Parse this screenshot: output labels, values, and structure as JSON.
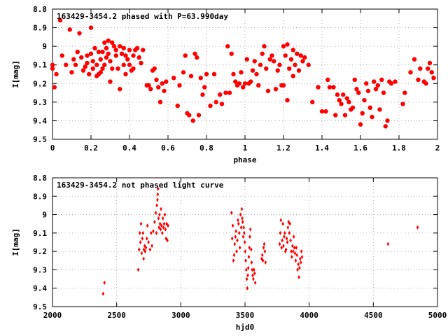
{
  "chart_data": [
    {
      "type": "scatter",
      "title": "163429-3454.2 phased with P=63.990day",
      "xlabel": "phase",
      "ylabel": "I[mag]",
      "xlim": [
        0,
        2
      ],
      "ylim": [
        8.8,
        9.5
      ],
      "y_inverted": true,
      "grid": true,
      "marker": "filled circle",
      "color": "#ff0000",
      "x_ticks": [
        "0",
        "0.2",
        "0.4",
        "0.6",
        "0.8",
        "1",
        "1.2",
        "1.4",
        "1.6",
        "1.8",
        "2"
      ],
      "y_ticks": [
        "8.8",
        "8.9",
        "9",
        "9.1",
        "9.2",
        "9.3",
        "9.4",
        "9.5"
      ],
      "points": [
        [
          0.0,
          9.1
        ],
        [
          0.0,
          9.12
        ],
        [
          0.01,
          9.22
        ],
        [
          0.02,
          9.15
        ],
        [
          0.04,
          8.86
        ],
        [
          0.05,
          9.05
        ],
        [
          0.07,
          9.1
        ],
        [
          0.09,
          8.91
        ],
        [
          0.1,
          9.14
        ],
        [
          0.11,
          9.07
        ],
        [
          0.12,
          9.1
        ],
        [
          0.13,
          9.03
        ],
        [
          0.14,
          8.93
        ],
        [
          0.15,
          9.06
        ],
        [
          0.16,
          9.13
        ],
        [
          0.17,
          9.11
        ],
        [
          0.18,
          9.05
        ],
        [
          0.18,
          9.09
        ],
        [
          0.19,
          9.15
        ],
        [
          0.2,
          8.9
        ],
        [
          0.2,
          9.04
        ],
        [
          0.21,
          9.08
        ],
        [
          0.21,
          9.12
        ],
        [
          0.22,
          9.01
        ],
        [
          0.23,
          9.16
        ],
        [
          0.23,
          9.1
        ],
        [
          0.24,
          9.03
        ],
        [
          0.24,
          9.15
        ],
        [
          0.25,
          9.14
        ],
        [
          0.25,
          9.07
        ],
        [
          0.26,
          9.03
        ],
        [
          0.26,
          9.12
        ],
        [
          0.27,
          8.98
        ],
        [
          0.27,
          9.1
        ],
        [
          0.28,
          9.06
        ],
        [
          0.28,
          9.01
        ],
        [
          0.29,
          8.97
        ],
        [
          0.29,
          9.04
        ],
        [
          0.3,
          9.08
        ],
        [
          0.3,
          9.19
        ],
        [
          0.31,
          8.98
        ],
        [
          0.31,
          9.12
        ],
        [
          0.32,
          9.0
        ],
        [
          0.33,
          9.02
        ],
        [
          0.33,
          9.05
        ],
        [
          0.34,
          9.12
        ],
        [
          0.35,
          9.0
        ],
        [
          0.35,
          9.23
        ],
        [
          0.36,
          9.04
        ],
        [
          0.37,
          9.01
        ],
        [
          0.37,
          9.1
        ],
        [
          0.38,
          9.15
        ],
        [
          0.38,
          9.05
        ],
        [
          0.39,
          9.07
        ],
        [
          0.4,
          9.1
        ],
        [
          0.4,
          9.02
        ],
        [
          0.41,
          9.13
        ],
        [
          0.42,
          9.05
        ],
        [
          0.42,
          9.12
        ],
        [
          0.43,
          9.02
        ],
        [
          0.44,
          9.01
        ],
        [
          0.45,
          9.06
        ],
        [
          0.46,
          9.09
        ],
        [
          0.47,
          9.02
        ],
        [
          0.49,
          9.21
        ],
        [
          0.5,
          9.21
        ],
        [
          0.51,
          9.23
        ],
        [
          0.52,
          9.13
        ],
        [
          0.53,
          9.12
        ],
        [
          0.54,
          9.18
        ],
        [
          0.55,
          9.22
        ],
        [
          0.56,
          9.3
        ],
        [
          0.57,
          9.2
        ],
        [
          0.58,
          9.24
        ],
        [
          0.59,
          9.19
        ],
        [
          0.63,
          9.17
        ],
        [
          0.65,
          9.32
        ],
        [
          0.66,
          9.21
        ],
        [
          0.68,
          9.14
        ],
        [
          0.69,
          9.05
        ],
        [
          0.7,
          9.36
        ],
        [
          0.71,
          9.37
        ],
        [
          0.72,
          9.16
        ],
        [
          0.73,
          9.4
        ],
        [
          0.74,
          9.04
        ],
        [
          0.75,
          9.06
        ],
        [
          0.76,
          9.37
        ],
        [
          0.77,
          9.17
        ],
        [
          0.78,
          9.26
        ],
        [
          0.79,
          9.22
        ],
        [
          0.8,
          9.15
        ],
        [
          0.82,
          9.32
        ],
        [
          0.84,
          9.15
        ],
        [
          0.85,
          9.3
        ],
        [
          0.87,
          9.26
        ],
        [
          0.88,
          9.31
        ],
        [
          0.9,
          9.25
        ],
        [
          0.91,
          9.0
        ],
        [
          0.92,
          9.25
        ],
        [
          0.93,
          9.04
        ],
        [
          0.94,
          9.15
        ],
        [
          0.95,
          9.19
        ],
        [
          0.96,
          9.21
        ],
        [
          0.97,
          9.2
        ],
        [
          0.98,
          9.14
        ],
        [
          0.99,
          9.22
        ],
        [
          1.0,
          9.2
        ],
        [
          1.01,
          9.07
        ],
        [
          1.02,
          9.2
        ],
        [
          1.03,
          9.19
        ],
        [
          1.04,
          9.13
        ],
        [
          1.05,
          9.08
        ],
        [
          1.06,
          9.15
        ],
        [
          1.07,
          9.21
        ],
        [
          1.08,
          9.1
        ],
        [
          1.09,
          9.04
        ],
        [
          1.1,
          9.0
        ],
        [
          1.11,
          9.12
        ],
        [
          1.12,
          9.24
        ],
        [
          1.13,
          9.07
        ],
        [
          1.14,
          9.05
        ],
        [
          1.15,
          9.08
        ],
        [
          1.16,
          9.23
        ],
        [
          1.17,
          9.13
        ],
        [
          1.18,
          9.1
        ],
        [
          1.19,
          9.21
        ],
        [
          1.2,
          9.0
        ],
        [
          1.2,
          9.21
        ],
        [
          1.21,
          9.05
        ],
        [
          1.22,
          8.99
        ],
        [
          1.22,
          9.29
        ],
        [
          1.23,
          9.12
        ],
        [
          1.24,
          9.07
        ],
        [
          1.25,
          9.02
        ],
        [
          1.25,
          9.16
        ],
        [
          1.26,
          9.1
        ],
        [
          1.27,
          9.04
        ],
        [
          1.28,
          9.13
        ],
        [
          1.29,
          9.05
        ],
        [
          1.3,
          9.08
        ],
        [
          1.31,
          9.06
        ],
        [
          1.33,
          9.1
        ],
        [
          1.35,
          9.3
        ],
        [
          1.38,
          9.22
        ],
        [
          1.4,
          9.35
        ],
        [
          1.42,
          9.35
        ],
        [
          1.43,
          9.18
        ],
        [
          1.44,
          9.22
        ],
        [
          1.46,
          9.22
        ],
        [
          1.47,
          9.37
        ],
        [
          1.48,
          9.26
        ],
        [
          1.49,
          9.29
        ],
        [
          1.5,
          9.31
        ],
        [
          1.51,
          9.26
        ],
        [
          1.52,
          9.37
        ],
        [
          1.53,
          9.28
        ],
        [
          1.54,
          9.3
        ],
        [
          1.55,
          9.34
        ],
        [
          1.56,
          9.33
        ],
        [
          1.57,
          9.18
        ],
        [
          1.58,
          9.23
        ],
        [
          1.59,
          9.25
        ],
        [
          1.6,
          9.42
        ],
        [
          1.61,
          9.36
        ],
        [
          1.62,
          9.29
        ],
        [
          1.63,
          9.2
        ],
        [
          1.64,
          9.24
        ],
        [
          1.65,
          9.33
        ],
        [
          1.66,
          9.38
        ],
        [
          1.67,
          9.19
        ],
        [
          1.68,
          9.23
        ],
        [
          1.69,
          9.21
        ],
        [
          1.7,
          9.34
        ],
        [
          1.71,
          9.18
        ],
        [
          1.72,
          9.25
        ],
        [
          1.73,
          9.43
        ],
        [
          1.74,
          9.4
        ],
        [
          1.75,
          9.19
        ],
        [
          1.76,
          9.2
        ],
        [
          1.78,
          9.19
        ],
        [
          1.82,
          9.31
        ],
        [
          1.83,
          9.25
        ],
        [
          1.86,
          9.14
        ],
        [
          1.88,
          9.07
        ],
        [
          1.9,
          9.18
        ],
        [
          1.91,
          9.12
        ],
        [
          1.93,
          9.19
        ],
        [
          1.94,
          9.2
        ],
        [
          1.95,
          9.12
        ],
        [
          1.96,
          9.09
        ],
        [
          1.97,
          9.14
        ],
        [
          1.98,
          9.17
        ]
      ]
    },
    {
      "type": "scatter",
      "title": "163429-3454.2 not phased light curve",
      "xlabel": "hjd0",
      "ylabel": "I[mag]",
      "xlim": [
        2000,
        5000
      ],
      "ylim": [
        8.8,
        9.5
      ],
      "y_inverted": true,
      "grid": true,
      "marker": "filled diamond",
      "color": "#ff0000",
      "x_ticks": [
        "2000",
        "2500",
        "3000",
        "3500",
        "4000",
        "4500",
        "5000"
      ],
      "y_ticks": [
        "8.8",
        "8.9",
        "9",
        "9.1",
        "9.2",
        "9.3",
        "9.4",
        "9.5"
      ],
      "points": [
        [
          2395,
          9.43
        ],
        [
          2405,
          9.37
        ],
        [
          2668,
          9.3
        ],
        [
          2675,
          9.19
        ],
        [
          2680,
          9.1
        ],
        [
          2685,
          9.15
        ],
        [
          2690,
          9.05
        ],
        [
          2695,
          9.21
        ],
        [
          2700,
          9.13
        ],
        [
          2705,
          9.1
        ],
        [
          2710,
          9.24
        ],
        [
          2712,
          9.19
        ],
        [
          2718,
          9.17
        ],
        [
          2722,
          9.2
        ],
        [
          2728,
          9.18
        ],
        [
          2735,
          9.13
        ],
        [
          2740,
          9.06
        ],
        [
          2748,
          9.15
        ],
        [
          2760,
          9.19
        ],
        [
          2768,
          9.1
        ],
        [
          2775,
          9.17
        ],
        [
          2785,
          9.09
        ],
        [
          2795,
          9.04
        ],
        [
          2805,
          8.99
        ],
        [
          2810,
          9.1
        ],
        [
          2813,
          8.95
        ],
        [
          2818,
          8.92
        ],
        [
          2820,
          8.89
        ],
        [
          2822,
          8.86
        ],
        [
          2826,
          9.02
        ],
        [
          2830,
          9.07
        ],
        [
          2834,
          9.0
        ],
        [
          2838,
          9.05
        ],
        [
          2842,
          9.08
        ],
        [
          2846,
          8.97
        ],
        [
          2850,
          9.06
        ],
        [
          2855,
          9.1
        ],
        [
          2860,
          9.02
        ],
        [
          2865,
          9.07
        ],
        [
          2870,
          9.05
        ],
        [
          2875,
          9.0
        ],
        [
          2880,
          9.08
        ],
        [
          2885,
          9.13
        ],
        [
          2890,
          9.05
        ],
        [
          2895,
          9.14
        ],
        [
          2900,
          9.06
        ],
        [
          3395,
          8.99
        ],
        [
          3400,
          9.13
        ],
        [
          3405,
          9.06
        ],
        [
          3410,
          9.25
        ],
        [
          3415,
          9.22
        ],
        [
          3420,
          9.16
        ],
        [
          3425,
          9.12
        ],
        [
          3430,
          9.09
        ],
        [
          3435,
          9.2
        ],
        [
          3440,
          9.14
        ],
        [
          3445,
          9.03
        ],
        [
          3450,
          9.05
        ],
        [
          3455,
          9.1
        ],
        [
          3460,
          9.18
        ],
        [
          3465,
          9.0
        ],
        [
          3470,
          9.07
        ],
        [
          3475,
          8.97
        ],
        [
          3478,
          9.02
        ],
        [
          3482,
          9.04
        ],
        [
          3486,
          9.12
        ],
        [
          3490,
          9.07
        ],
        [
          3494,
          9.1
        ],
        [
          3498,
          9.15
        ],
        [
          3502,
          9.2
        ],
        [
          3506,
          9.25
        ],
        [
          3510,
          9.3
        ],
        [
          3514,
          9.35
        ],
        [
          3518,
          9.4
        ],
        [
          3522,
          9.33
        ],
        [
          3526,
          9.29
        ],
        [
          3530,
          9.23
        ],
        [
          3534,
          9.18
        ],
        [
          3538,
          9.12
        ],
        [
          3542,
          9.08
        ],
        [
          3548,
          9.19
        ],
        [
          3552,
          9.26
        ],
        [
          3556,
          9.3
        ],
        [
          3560,
          9.33
        ],
        [
          3565,
          9.35
        ],
        [
          3570,
          9.3
        ],
        [
          3575,
          9.32
        ],
        [
          3580,
          9.37
        ],
        [
          3630,
          9.24
        ],
        [
          3635,
          9.22
        ],
        [
          3640,
          9.25
        ],
        [
          3645,
          9.18
        ],
        [
          3650,
          9.16
        ],
        [
          3655,
          9.2
        ],
        [
          3660,
          9.26
        ],
        [
          3770,
          9.16
        ],
        [
          3775,
          9.1
        ],
        [
          3780,
          9.03
        ],
        [
          3785,
          9.18
        ],
        [
          3790,
          9.14
        ],
        [
          3795,
          9.05
        ],
        [
          3800,
          9.17
        ],
        [
          3805,
          9.12
        ],
        [
          3810,
          9.1
        ],
        [
          3815,
          9.2
        ],
        [
          3820,
          9.19
        ],
        [
          3825,
          9.13
        ],
        [
          3830,
          9.15
        ],
        [
          3835,
          9.07
        ],
        [
          3840,
          9.04
        ],
        [
          3845,
          9.1
        ],
        [
          3850,
          9.05
        ],
        [
          3855,
          9.14
        ],
        [
          3860,
          9.2
        ],
        [
          3865,
          9.23
        ],
        [
          3870,
          9.17
        ],
        [
          3875,
          9.2
        ],
        [
          3880,
          9.12
        ],
        [
          3885,
          9.18
        ],
        [
          3890,
          9.21
        ],
        [
          3895,
          9.25
        ],
        [
          3900,
          9.18
        ],
        [
          3905,
          9.22
        ],
        [
          3910,
          9.3
        ],
        [
          3915,
          9.27
        ],
        [
          3920,
          9.34
        ],
        [
          3925,
          9.29
        ],
        [
          3930,
          9.24
        ],
        [
          3935,
          9.26
        ],
        [
          3940,
          9.2
        ],
        [
          3945,
          9.23
        ],
        [
          4615,
          9.16
        ],
        [
          4845,
          9.07
        ]
      ]
    }
  ]
}
